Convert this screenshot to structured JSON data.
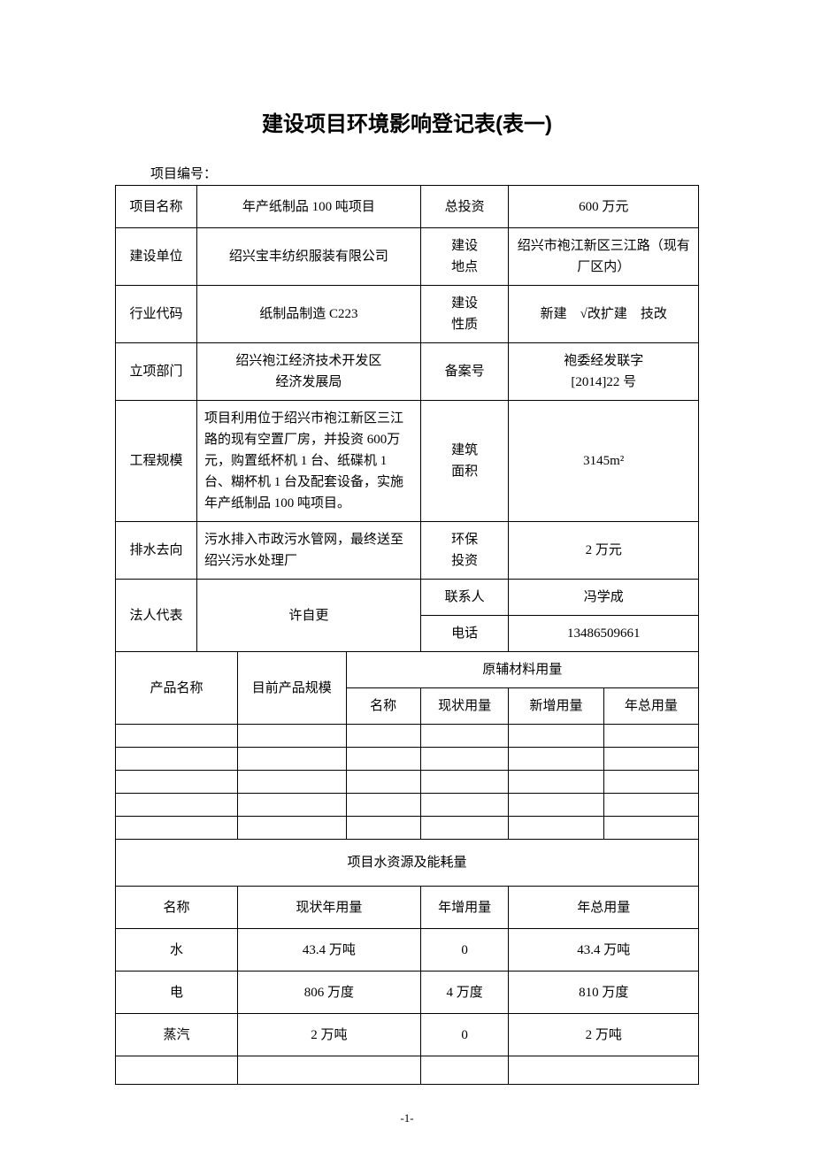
{
  "document": {
    "title": "建设项目环境影响登记表(表一)",
    "subtitle_label": "项目编号：",
    "page_number": "-1-"
  },
  "fields": {
    "project_name_label": "项目名称",
    "project_name": "年产纸制品 100 吨项目",
    "total_investment_label": "总投资",
    "total_investment": "600 万元",
    "construction_unit_label": "建设单位",
    "construction_unit": "绍兴宝丰纺织服装有限公司",
    "construction_site_label": "建设\n地点",
    "construction_site": "绍兴市袍江新区三江路（现有厂区内）",
    "industry_code_label": "行业代码",
    "industry_code": "纸制品制造  C223",
    "construction_nature_label": "建设\n性质",
    "construction_nature": "新建 √改扩建 技改",
    "approval_dept_label": "立项部门",
    "approval_dept": "绍兴袍江经济技术开发区\n经济发展局",
    "filing_no_label": "备案号",
    "filing_no": "袍委经发联字\n[2014]22 号",
    "project_scale_label": "工程规模",
    "project_scale": "项目利用位于绍兴市袍江新区三江路的现有空置厂房，并投资 600万元，购置纸杯机 1 台、纸碟机 1台、糊杯机 1 台及配套设备，实施年产纸制品 100 吨项目。",
    "building_area_label": "建筑\n面积",
    "building_area": "3145m²",
    "drainage_label": "排水去向",
    "drainage": "污水排入市政污水管网，最终送至绍兴污水处理厂",
    "env_investment_label": "环保\n投资",
    "env_investment": "2 万元",
    "legal_rep_label": "法人代表",
    "legal_rep": "许自更",
    "contact_label": "联系人",
    "contact": "冯学成",
    "phone_label": "电话",
    "phone": "13486509661"
  },
  "materials": {
    "product_name_label": "产品名称",
    "current_scale_label": "目前产品规模",
    "raw_materials_label": "原辅材料用量",
    "name_label": "名称",
    "current_usage_label": "现状用量",
    "new_usage_label": "新增用量",
    "annual_total_label": "年总用量"
  },
  "resources": {
    "section_title": "项目水资源及能耗量",
    "name_label": "名称",
    "current_annual_label": "现状年用量",
    "annual_increase_label": "年增用量",
    "annual_total_label": "年总用量",
    "rows": [
      {
        "name": "水",
        "current": "43.4 万吨",
        "increase": "0",
        "total": "43.4 万吨"
      },
      {
        "name": "电",
        "current": "806 万度",
        "increase": "4 万度",
        "total": "810 万度"
      },
      {
        "name": "蒸汽",
        "current": "2 万吨",
        "increase": "0",
        "total": "2 万吨"
      }
    ]
  }
}
